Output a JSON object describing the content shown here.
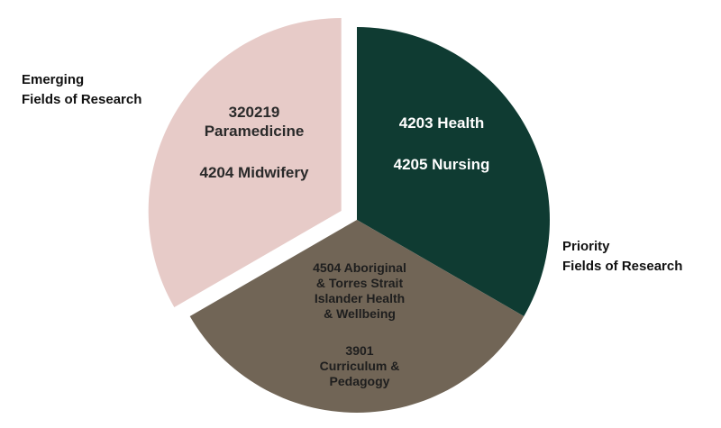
{
  "chart_data": {
    "type": "pie",
    "title": "",
    "slices": [
      {
        "label": "4203 Health / 4205 Nursing",
        "value": 33.3,
        "color": "#0f3b32",
        "text_color": "#ffffff",
        "lines": [
          "4203 Health",
          "",
          "4205 Nursing"
        ]
      },
      {
        "label": "4504 Aboriginal & Torres Strait Islander Health & Wellbeing / 3901 Curriculum & Pedagogy",
        "value": 33.3,
        "color": "#716556",
        "text_color": "#1e1e1e",
        "lines": [
          "4504 Aboriginal",
          "& Torres Strait",
          "Islander Health",
          "& Wellbeing",
          "",
          "3901",
          "Curriculum &",
          "Pedagogy"
        ]
      },
      {
        "label": "320219 Paramedicine / 4204 Midwifery",
        "value": 33.3,
        "color": "#e7cbc8",
        "text_color": "#2a2a2a",
        "lines": [
          "320219",
          "Paramedicine",
          "",
          "4204 Midwifery"
        ]
      }
    ],
    "group_labels": {
      "emerging": [
        "Emerging",
        "Fields of Research"
      ],
      "priority": [
        "Priority",
        "Fields of Research"
      ]
    }
  }
}
